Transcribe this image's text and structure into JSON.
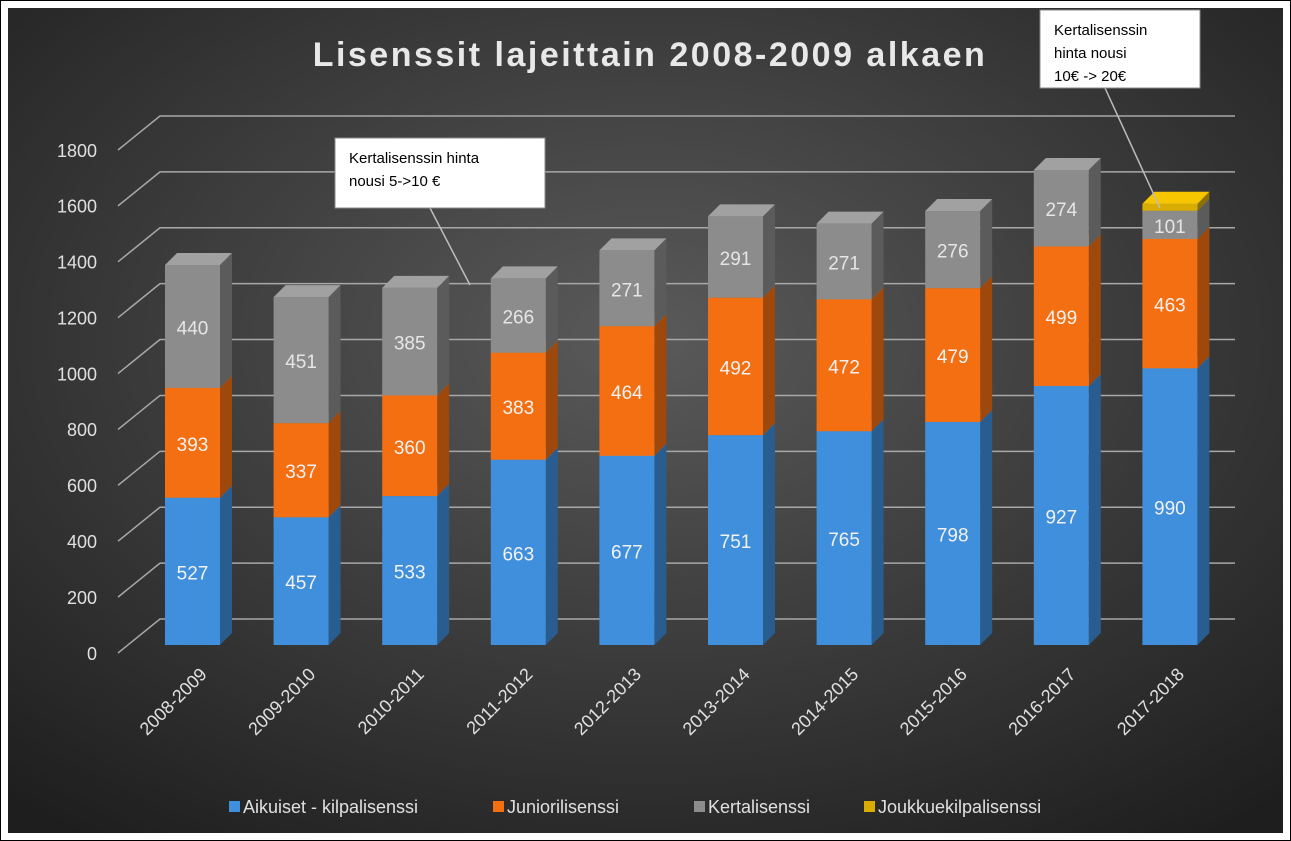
{
  "chart_data": {
    "type": "bar3d_stacked",
    "title": "Lisenssit lajeittain 2008-2009 alkaen",
    "categories": [
      "2008-2009",
      "2009-2010",
      "2010-2011",
      "2011-2012",
      "2012-2013",
      "2013-2014",
      "2014-2015",
      "2015-2016",
      "2016-2017",
      "2017-2018"
    ],
    "series": [
      {
        "name": "Aikuiset - kilpalisenssi",
        "color": "#3f8fdc",
        "show_labels": true,
        "values": [
          527,
          457,
          533,
          663,
          677,
          751,
          765,
          798,
          927,
          990
        ]
      },
      {
        "name": "Juniorilisenssi",
        "color": "#f36f12",
        "show_labels": true,
        "values": [
          393,
          337,
          360,
          383,
          464,
          492,
          472,
          479,
          499,
          463
        ]
      },
      {
        "name": "Kertalisenssi",
        "color": "#8c8c8c",
        "show_labels": true,
        "values": [
          440,
          451,
          385,
          266,
          271,
          291,
          271,
          276,
          274,
          101
        ]
      },
      {
        "name": "Joukkuekilpalisenssi",
        "color": "#d8ac00",
        "show_labels": false,
        "values": [
          null,
          null,
          null,
          null,
          null,
          null,
          null,
          null,
          null,
          25
        ]
      }
    ],
    "ylim": [
      0,
      1800
    ],
    "yticks": [
      0,
      200,
      400,
      600,
      800,
      1000,
      1200,
      1400,
      1600,
      1800
    ],
    "grid": true,
    "annotations": [
      {
        "lines": [
          "Kertalisenssin hinta",
          "nousi 5->10 €"
        ]
      },
      {
        "lines": [
          "Kertalisenssin",
          "hinta nousi",
          "10€ -> 20€"
        ]
      }
    ]
  }
}
